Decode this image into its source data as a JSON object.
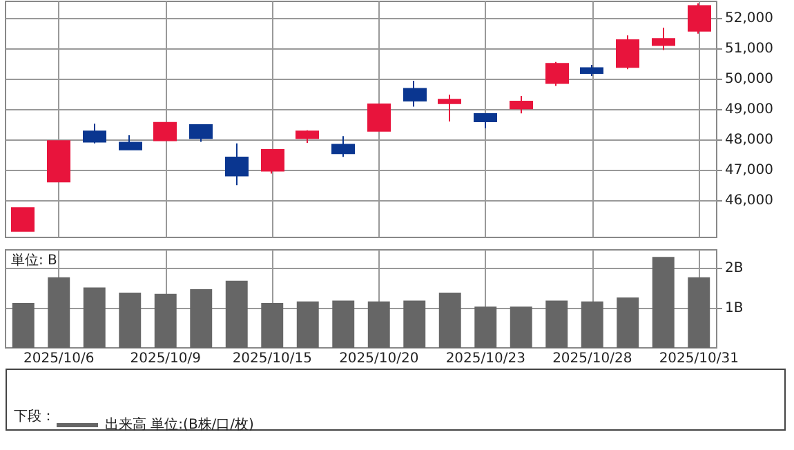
{
  "chart_data": [
    {
      "type": "candlestick",
      "categories": [
        null,
        "2025/10/6",
        null,
        null,
        "2025/10/9",
        null,
        null,
        "2025/10/15",
        null,
        null,
        "2025/10/20",
        null,
        null,
        "2025/10/23",
        null,
        null,
        "2025/10/28",
        null,
        null,
        "2025/10/31"
      ],
      "ohlc": [
        [
          45010,
          45780,
          45000,
          45770
        ],
        [
          46630,
          47980,
          46620,
          47970
        ],
        [
          48290,
          48540,
          47890,
          47940
        ],
        [
          47920,
          48160,
          47690,
          47690
        ],
        [
          47990,
          48580,
          47990,
          48570
        ],
        [
          48500,
          48500,
          47940,
          48060
        ],
        [
          47430,
          47890,
          46520,
          46830
        ],
        [
          46990,
          47690,
          46900,
          47680
        ],
        [
          48060,
          48320,
          47910,
          48290
        ],
        [
          47850,
          48130,
          47450,
          47560
        ],
        [
          48300,
          49200,
          48290,
          49180
        ],
        [
          49690,
          49950,
          49100,
          49290
        ],
        [
          49210,
          49490,
          48610,
          49330
        ],
        [
          48860,
          48870,
          48390,
          48610
        ],
        [
          49040,
          49450,
          48880,
          49270
        ],
        [
          49870,
          50570,
          49780,
          50510
        ],
        [
          50370,
          50470,
          50110,
          50200
        ],
        [
          50400,
          51440,
          50330,
          51290
        ],
        [
          51120,
          51690,
          50960,
          51330
        ],
        [
          51590,
          52500,
          51500,
          52410
        ]
      ],
      "colors": [
        "#e8143c",
        "#e8143c",
        "#0a3690",
        "#0a3690",
        "#e8143c",
        "#0a3690",
        "#0a3690",
        "#e8143c",
        "#e8143c",
        "#0a3690",
        "#e8143c",
        "#0a3690",
        "#e8143c",
        "#0a3690",
        "#e8143c",
        "#e8143c",
        "#0a3690",
        "#e8143c",
        "#e8143c",
        "#e8143c"
      ],
      "ylim": [
        44800,
        52560
      ],
      "yticks": [
        {
          "value": 46000,
          "label": "46,000"
        },
        {
          "value": 47000,
          "label": "47,000"
        },
        {
          "value": 48000,
          "label": "48,000"
        },
        {
          "value": 49000,
          "label": "49,000"
        },
        {
          "value": 50000,
          "label": "50,000"
        },
        {
          "value": 51000,
          "label": "51,000"
        },
        {
          "value": 52000,
          "label": "52,000"
        }
      ],
      "grid": true,
      "tick_labels": "y"
    },
    {
      "type": "bar",
      "categories": [
        null,
        "2025/10/6",
        null,
        null,
        "2025/10/9",
        null,
        null,
        "2025/10/15",
        null,
        null,
        "2025/10/20",
        null,
        null,
        "2025/10/23",
        null,
        null,
        "2025/10/28",
        null,
        null,
        "2025/10/31"
      ],
      "series": [
        {
          "name": "出来高 単位:(B株/口/枚)",
          "color": "#666666",
          "values": [
            1.13,
            1.78,
            1.52,
            1.39,
            1.36,
            1.48,
            1.69,
            1.13,
            1.17,
            1.19,
            1.17,
            1.19,
            1.39,
            1.04,
            1.04,
            1.19,
            1.17,
            1.27,
            2.29,
            1.78
          ]
        }
      ],
      "ylim": [
        0,
        2.47
      ],
      "yticks": [
        {
          "value": 1,
          "label": "1B"
        },
        {
          "value": 2,
          "label": "2B"
        }
      ],
      "grid": true,
      "legend": "bottom",
      "legend_title": "下段：",
      "annotations": [
        "単位: B"
      ]
    }
  ]
}
